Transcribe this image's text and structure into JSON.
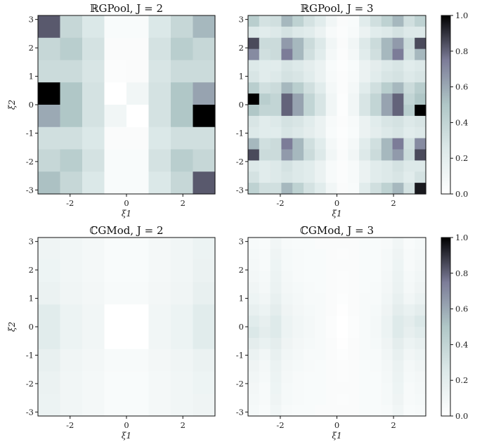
{
  "colorbar": {
    "ticks": [
      "0.0",
      "0.2",
      "0.4",
      "0.6",
      "0.8",
      "1.0"
    ]
  },
  "chart_data": [
    {
      "type": "heatmap",
      "title": "ℝGPool, J = 2",
      "xlabel": "ξ1",
      "ylabel": "ξ2",
      "xlim": [
        -3.14,
        3.14
      ],
      "ylim": [
        -3.14,
        3.14
      ],
      "xticks": [
        "-2",
        "0",
        "2"
      ],
      "yticks": [
        "3",
        "2",
        "1",
        "0",
        "-1",
        "-2",
        "-3"
      ],
      "colormap": "bone_r",
      "clim": [
        0,
        1
      ],
      "rows_top_to_bottom": [
        [
          0.82,
          0.38,
          0.26,
          0.05,
          0.05,
          0.26,
          0.38,
          0.55
        ],
        [
          0.38,
          0.45,
          0.3,
          0.04,
          0.04,
          0.3,
          0.45,
          0.38
        ],
        [
          0.35,
          0.35,
          0.28,
          0.03,
          0.04,
          0.28,
          0.35,
          0.35
        ],
        [
          1.0,
          0.5,
          0.3,
          0.0,
          0.1,
          0.3,
          0.5,
          0.62
        ],
        [
          0.6,
          0.5,
          0.3,
          0.1,
          0.0,
          0.3,
          0.5,
          1.0
        ],
        [
          0.32,
          0.32,
          0.26,
          0.04,
          0.04,
          0.26,
          0.32,
          0.32
        ],
        [
          0.38,
          0.45,
          0.3,
          0.05,
          0.05,
          0.3,
          0.45,
          0.38
        ],
        [
          0.52,
          0.38,
          0.26,
          0.05,
          0.05,
          0.26,
          0.38,
          0.82
        ]
      ]
    },
    {
      "type": "heatmap",
      "title": "ℝGPool, J = 3",
      "xlabel": "ξ1",
      "ylabel": "",
      "xlim": [
        -3.14,
        3.14
      ],
      "ylim": [
        -3.14,
        3.14
      ],
      "xticks": [
        "-2",
        "0",
        "2"
      ],
      "yticks": [
        "3",
        "2",
        "1",
        "0",
        "-1",
        "-2",
        "-3"
      ],
      "colormap": "bone_r",
      "clim": [
        0,
        1
      ],
      "rows_top_to_bottom": [
        [
          0.45,
          0.3,
          0.32,
          0.55,
          0.42,
          0.3,
          0.22,
          0.1,
          0.04,
          0.05,
          0.22,
          0.32,
          0.42,
          0.55,
          0.32,
          0.42
        ],
        [
          0.25,
          0.22,
          0.25,
          0.3,
          0.25,
          0.22,
          0.15,
          0.06,
          0.03,
          0.06,
          0.15,
          0.22,
          0.25,
          0.3,
          0.25,
          0.25
        ],
        [
          0.85,
          0.35,
          0.35,
          0.65,
          0.55,
          0.35,
          0.25,
          0.1,
          0.04,
          0.1,
          0.25,
          0.35,
          0.55,
          0.65,
          0.35,
          0.85
        ],
        [
          0.7,
          0.32,
          0.35,
          0.75,
          0.55,
          0.32,
          0.22,
          0.08,
          0.03,
          0.08,
          0.22,
          0.32,
          0.55,
          0.75,
          0.32,
          0.55
        ],
        [
          0.25,
          0.22,
          0.22,
          0.28,
          0.25,
          0.2,
          0.15,
          0.05,
          0.02,
          0.05,
          0.15,
          0.2,
          0.25,
          0.28,
          0.22,
          0.25
        ],
        [
          0.28,
          0.22,
          0.25,
          0.3,
          0.28,
          0.22,
          0.15,
          0.06,
          0.03,
          0.06,
          0.15,
          0.22,
          0.28,
          0.3,
          0.25,
          0.28
        ],
        [
          0.45,
          0.32,
          0.35,
          0.55,
          0.45,
          0.32,
          0.22,
          0.08,
          0.03,
          0.08,
          0.22,
          0.32,
          0.45,
          0.55,
          0.35,
          0.45
        ],
        [
          1.0,
          0.45,
          0.4,
          0.8,
          0.62,
          0.4,
          0.28,
          0.1,
          0.02,
          0.1,
          0.28,
          0.4,
          0.62,
          0.8,
          0.4,
          0.5
        ],
        [
          0.5,
          0.4,
          0.4,
          0.8,
          0.62,
          0.4,
          0.28,
          0.1,
          0.02,
          0.1,
          0.28,
          0.4,
          0.62,
          0.8,
          0.45,
          1.0
        ],
        [
          0.28,
          0.22,
          0.25,
          0.3,
          0.28,
          0.22,
          0.15,
          0.06,
          0.03,
          0.06,
          0.15,
          0.22,
          0.28,
          0.3,
          0.25,
          0.28
        ],
        [
          0.25,
          0.22,
          0.22,
          0.28,
          0.25,
          0.2,
          0.15,
          0.05,
          0.02,
          0.05,
          0.15,
          0.2,
          0.25,
          0.28,
          0.22,
          0.25
        ],
        [
          0.55,
          0.32,
          0.35,
          0.75,
          0.55,
          0.32,
          0.22,
          0.08,
          0.03,
          0.08,
          0.22,
          0.32,
          0.55,
          0.75,
          0.32,
          0.7
        ],
        [
          0.85,
          0.35,
          0.35,
          0.65,
          0.55,
          0.35,
          0.25,
          0.1,
          0.04,
          0.1,
          0.25,
          0.35,
          0.55,
          0.65,
          0.35,
          0.85
        ],
        [
          0.25,
          0.22,
          0.25,
          0.3,
          0.25,
          0.22,
          0.15,
          0.06,
          0.03,
          0.06,
          0.15,
          0.22,
          0.25,
          0.3,
          0.25,
          0.25
        ],
        [
          0.3,
          0.22,
          0.25,
          0.28,
          0.25,
          0.22,
          0.15,
          0.06,
          0.03,
          0.06,
          0.15,
          0.22,
          0.25,
          0.28,
          0.22,
          0.3
        ],
        [
          0.42,
          0.32,
          0.32,
          0.55,
          0.42,
          0.3,
          0.22,
          0.1,
          0.04,
          0.05,
          0.22,
          0.32,
          0.42,
          0.55,
          0.3,
          0.95
        ]
      ]
    },
    {
      "type": "heatmap",
      "title": "ℂGMod, J = 2",
      "xlabel": "ξ1",
      "ylabel": "ξ2",
      "xlim": [
        -3.14,
        3.14
      ],
      "ylim": [
        -3.14,
        3.14
      ],
      "xticks": [
        "-2",
        "0",
        "2"
      ],
      "yticks": [
        "3",
        "2",
        "1",
        "0",
        "-1",
        "-2",
        "-3"
      ],
      "colormap": "bone_r",
      "clim": [
        0,
        1
      ],
      "rows_top_to_bottom": [
        [
          0.12,
          0.1,
          0.08,
          0.05,
          0.05,
          0.08,
          0.1,
          0.14
        ],
        [
          0.13,
          0.1,
          0.08,
          0.05,
          0.05,
          0.08,
          0.1,
          0.15
        ],
        [
          0.15,
          0.11,
          0.09,
          0.06,
          0.06,
          0.09,
          0.11,
          0.17
        ],
        [
          0.22,
          0.14,
          0.1,
          0.0,
          0.0,
          0.1,
          0.14,
          0.22
        ],
        [
          0.22,
          0.14,
          0.1,
          0.0,
          0.0,
          0.1,
          0.14,
          0.22
        ],
        [
          0.17,
          0.11,
          0.09,
          0.06,
          0.06,
          0.09,
          0.11,
          0.15
        ],
        [
          0.15,
          0.1,
          0.08,
          0.05,
          0.05,
          0.08,
          0.1,
          0.13
        ],
        [
          0.14,
          0.1,
          0.08,
          0.05,
          0.05,
          0.08,
          0.1,
          0.12
        ]
      ]
    },
    {
      "type": "heatmap",
      "title": "ℂGMod, J = 3",
      "xlabel": "ξ1",
      "ylabel": "",
      "xlim": [
        -3.14,
        3.14
      ],
      "ylim": [
        -3.14,
        3.14
      ],
      "xticks": [
        "-2",
        "0",
        "2"
      ],
      "yticks": [
        "3",
        "2",
        "1",
        "0",
        "-1",
        "-2",
        "-3"
      ],
      "colormap": "bone_r",
      "clim": [
        0,
        1
      ],
      "rows_top_to_bottom": [
        [
          0.06,
          0.05,
          0.1,
          0.06,
          0.05,
          0.05,
          0.04,
          0.04,
          0.04,
          0.04,
          0.05,
          0.05,
          0.06,
          0.1,
          0.05,
          0.07
        ],
        [
          0.07,
          0.06,
          0.12,
          0.07,
          0.06,
          0.05,
          0.05,
          0.04,
          0.03,
          0.04,
          0.05,
          0.05,
          0.07,
          0.12,
          0.06,
          0.08
        ],
        [
          0.08,
          0.06,
          0.13,
          0.07,
          0.06,
          0.05,
          0.05,
          0.04,
          0.04,
          0.04,
          0.05,
          0.05,
          0.07,
          0.13,
          0.06,
          0.09
        ],
        [
          0.09,
          0.07,
          0.14,
          0.08,
          0.06,
          0.05,
          0.05,
          0.04,
          0.03,
          0.04,
          0.05,
          0.05,
          0.08,
          0.14,
          0.07,
          0.1
        ],
        [
          0.11,
          0.08,
          0.15,
          0.09,
          0.07,
          0.06,
          0.05,
          0.04,
          0.03,
          0.04,
          0.05,
          0.06,
          0.09,
          0.15,
          0.08,
          0.12
        ],
        [
          0.13,
          0.1,
          0.17,
          0.1,
          0.08,
          0.06,
          0.06,
          0.04,
          0.02,
          0.04,
          0.06,
          0.06,
          0.1,
          0.17,
          0.1,
          0.15
        ],
        [
          0.17,
          0.14,
          0.2,
          0.12,
          0.09,
          0.07,
          0.06,
          0.04,
          0.01,
          0.04,
          0.06,
          0.07,
          0.12,
          0.2,
          0.16,
          0.2
        ],
        [
          0.22,
          0.18,
          0.24,
          0.14,
          0.1,
          0.08,
          0.06,
          0.03,
          0.0,
          0.03,
          0.06,
          0.08,
          0.14,
          0.24,
          0.2,
          0.26
        ],
        [
          0.26,
          0.2,
          0.24,
          0.14,
          0.1,
          0.08,
          0.06,
          0.03,
          0.0,
          0.03,
          0.06,
          0.08,
          0.14,
          0.24,
          0.18,
          0.22
        ],
        [
          0.2,
          0.16,
          0.2,
          0.12,
          0.09,
          0.07,
          0.06,
          0.04,
          0.01,
          0.04,
          0.06,
          0.07,
          0.12,
          0.2,
          0.14,
          0.17
        ],
        [
          0.15,
          0.1,
          0.17,
          0.1,
          0.08,
          0.06,
          0.06,
          0.04,
          0.02,
          0.04,
          0.06,
          0.06,
          0.1,
          0.17,
          0.1,
          0.13
        ],
        [
          0.12,
          0.08,
          0.15,
          0.09,
          0.07,
          0.06,
          0.05,
          0.04,
          0.03,
          0.04,
          0.05,
          0.06,
          0.09,
          0.15,
          0.08,
          0.11
        ],
        [
          0.1,
          0.07,
          0.14,
          0.08,
          0.06,
          0.05,
          0.05,
          0.04,
          0.03,
          0.04,
          0.05,
          0.05,
          0.08,
          0.14,
          0.07,
          0.09
        ],
        [
          0.09,
          0.06,
          0.13,
          0.07,
          0.06,
          0.05,
          0.05,
          0.04,
          0.04,
          0.04,
          0.05,
          0.05,
          0.07,
          0.13,
          0.06,
          0.08
        ],
        [
          0.08,
          0.06,
          0.12,
          0.07,
          0.06,
          0.05,
          0.05,
          0.04,
          0.03,
          0.04,
          0.05,
          0.05,
          0.07,
          0.12,
          0.06,
          0.07
        ],
        [
          0.07,
          0.05,
          0.1,
          0.06,
          0.05,
          0.05,
          0.04,
          0.04,
          0.04,
          0.04,
          0.05,
          0.05,
          0.06,
          0.1,
          0.05,
          0.06
        ]
      ]
    }
  ]
}
